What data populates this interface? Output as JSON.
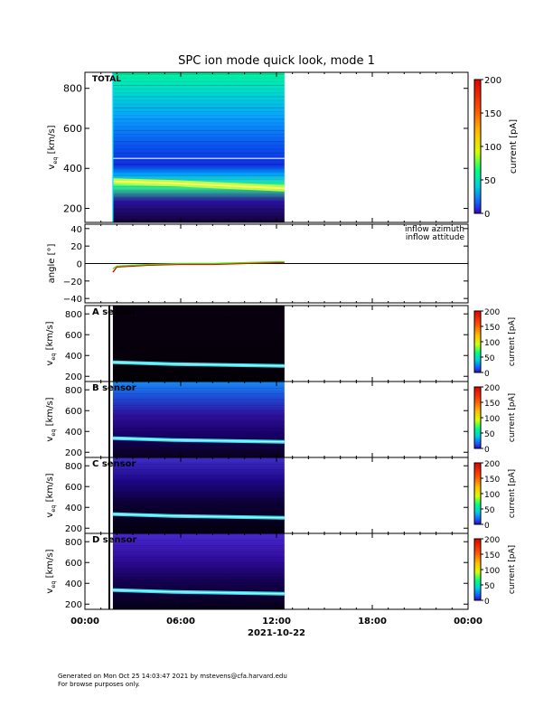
{
  "title": "SPC ion mode quick look, mode 1",
  "footer": {
    "line1": "Generated on Mon Oct 25 14:03:47 2021 by mstevens@cfa.harvard.edu",
    "line2": "For browse purposes only."
  },
  "time_axis": {
    "ticks": [
      "00:00",
      "06:00",
      "12:00",
      "18:00",
      "00:00"
    ],
    "date_label": "2021-10-22"
  },
  "colorscale": {
    "colors": [
      "#3a00c8",
      "#1060ff",
      "#00d0e0",
      "#00ff80",
      "#d8ff00",
      "#ffc000",
      "#ff5000",
      "#e00000"
    ]
  },
  "chart_data": [
    {
      "type": "heatmap",
      "title": "TOTAL",
      "ylabel_main": "v",
      "ylabel_sub": "eq",
      "ylabel_unit": " [km/s]",
      "yticks": [
        "200",
        "400",
        "600",
        "800"
      ],
      "ylim": [
        130,
        880
      ],
      "time_coverage": [
        "01:45",
        "12:30"
      ],
      "peak_speed_kms": [
        335,
        300
      ],
      "colorbar": {
        "label": "current [pA]",
        "ticks": [
          "0",
          "50",
          "100",
          "150",
          "200"
        ],
        "range": [
          0,
          200
        ]
      }
    },
    {
      "type": "line",
      "ylabel": "angle [°]",
      "yticks": [
        "40",
        "20",
        "0",
        "−20",
        "−40"
      ],
      "ylim": [
        -45,
        45
      ],
      "grid": false,
      "legend_position": "top-right",
      "series": [
        {
          "name": "inflow azimuth",
          "color": "#e00000",
          "x": [
            "01:45",
            "02:00",
            "03:00",
            "04:00",
            "06:00",
            "08:00",
            "10:00",
            "12:00",
            "12:30"
          ],
          "values": [
            -10,
            -4,
            -3,
            -2,
            -1,
            -1,
            0,
            1,
            1
          ]
        },
        {
          "name": "inflow attitude",
          "color": "#40e000",
          "x": [
            "01:45",
            "02:00",
            "03:00",
            "04:00",
            "06:00",
            "08:00",
            "10:00",
            "12:00",
            "12:30"
          ],
          "values": [
            -6,
            -3,
            -2,
            -1,
            0,
            0,
            1,
            2,
            2
          ]
        }
      ]
    },
    {
      "type": "heatmap",
      "title": "A sensor",
      "ylabel_main": "v",
      "ylabel_sub": "eq",
      "ylabel_unit": " [km/s]",
      "yticks": [
        "200",
        "400",
        "600",
        "800"
      ],
      "ylim": [
        150,
        880
      ],
      "time_coverage": [
        "01:45",
        "12:30"
      ],
      "peak_speed_kms": [
        335,
        300
      ],
      "colorbar": {
        "label": "current [pA]",
        "ticks": [
          "0",
          "50",
          "100",
          "150",
          "200"
        ],
        "range": [
          0,
          200
        ]
      }
    },
    {
      "type": "heatmap",
      "title": "B sensor",
      "ylabel_main": "v",
      "ylabel_sub": "eq",
      "ylabel_unit": " [km/s]",
      "yticks": [
        "200",
        "400",
        "600",
        "800"
      ],
      "ylim": [
        150,
        880
      ],
      "time_coverage": [
        "01:45",
        "12:30"
      ],
      "peak_speed_kms": [
        335,
        300
      ],
      "colorbar": {
        "label": "current [pA]",
        "ticks": [
          "0",
          "50",
          "100",
          "150",
          "200"
        ],
        "range": [
          0,
          200
        ]
      }
    },
    {
      "type": "heatmap",
      "title": "C sensor",
      "ylabel_main": "v",
      "ylabel_sub": "eq",
      "ylabel_unit": " [km/s]",
      "yticks": [
        "200",
        "400",
        "600",
        "800"
      ],
      "ylim": [
        150,
        880
      ],
      "time_coverage": [
        "01:45",
        "12:30"
      ],
      "peak_speed_kms": [
        335,
        300
      ],
      "colorbar": {
        "label": "current [pA]",
        "ticks": [
          "0",
          "50",
          "100",
          "150",
          "200"
        ],
        "range": [
          0,
          200
        ]
      }
    },
    {
      "type": "heatmap",
      "title": "D sensor",
      "ylabel_main": "v",
      "ylabel_sub": "eq",
      "ylabel_unit": " [km/s]",
      "yticks": [
        "200",
        "400",
        "600",
        "800"
      ],
      "ylim": [
        150,
        880
      ],
      "time_coverage": [
        "01:45",
        "12:30"
      ],
      "peak_speed_kms": [
        335,
        300
      ],
      "colorbar": {
        "label": "current [pA]",
        "ticks": [
          "0",
          "50",
          "100",
          "150",
          "200"
        ],
        "range": [
          0,
          200
        ]
      }
    }
  ]
}
